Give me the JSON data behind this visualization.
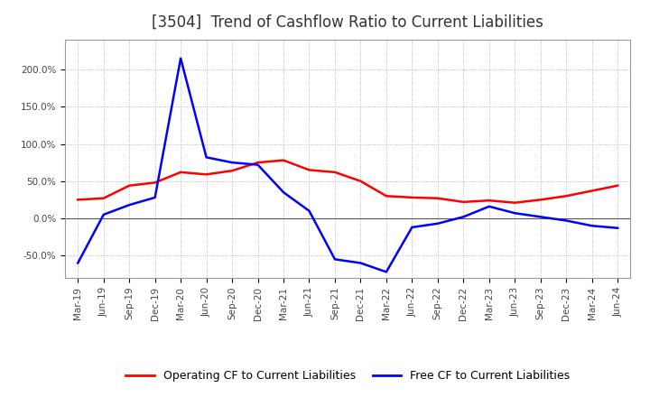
{
  "title": "[3504]  Trend of Cashflow Ratio to Current Liabilities",
  "x_labels": [
    "Mar-19",
    "Jun-19",
    "Sep-19",
    "Dec-19",
    "Mar-20",
    "Jun-20",
    "Sep-20",
    "Dec-20",
    "Mar-21",
    "Jun-21",
    "Sep-21",
    "Dec-21",
    "Mar-22",
    "Jun-22",
    "Sep-22",
    "Dec-22",
    "Mar-23",
    "Jun-23",
    "Sep-23",
    "Dec-23",
    "Mar-24",
    "Jun-24"
  ],
  "operating_cf": [
    0.25,
    0.27,
    0.44,
    0.48,
    0.62,
    0.59,
    0.64,
    0.75,
    0.78,
    0.65,
    0.62,
    0.5,
    0.3,
    0.28,
    0.27,
    0.22,
    0.24,
    0.21,
    0.25,
    0.3,
    0.37,
    0.44
  ],
  "free_cf": [
    -0.6,
    0.05,
    0.18,
    0.28,
    2.15,
    0.82,
    0.75,
    0.72,
    0.35,
    0.1,
    -0.55,
    -0.6,
    -0.72,
    -0.12,
    -0.07,
    0.02,
    0.16,
    0.07,
    0.02,
    -0.03,
    -0.1,
    -0.13
  ],
  "operating_color": "#ff0000",
  "free_color": "#0000ff",
  "ylim_min": -0.8,
  "ylim_max": 2.4,
  "yticks": [
    -0.5,
    0.0,
    0.5,
    1.0,
    1.5,
    2.0
  ],
  "ytick_labels": [
    "-50.0%",
    "0.0%",
    "50.0%",
    "100.0%",
    "150.0%",
    "200.0%"
  ],
  "legend_operating": "Operating CF to Current Liabilities",
  "legend_free": "Free CF to Current Liabilities",
  "bg_color": "#ffffff",
  "plot_bg_color": "#ffffff",
  "grid_color": "#aaaaaa",
  "title_fontsize": 12,
  "label_fontsize": 7.5,
  "legend_fontsize": 9
}
